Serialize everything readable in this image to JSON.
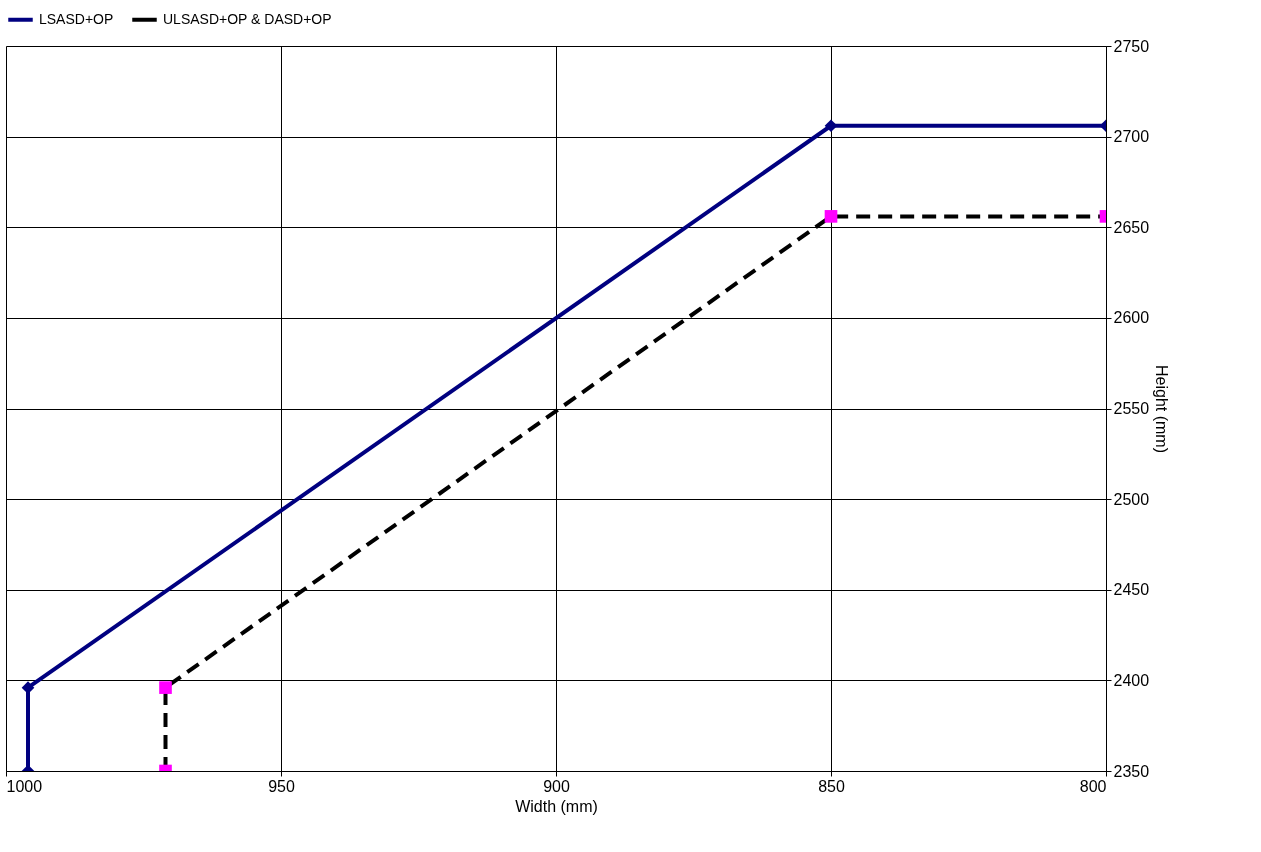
{
  "chart_data": {
    "type": "line",
    "xlabel": "Width (mm)",
    "ylabel": "Height (mm)",
    "xlim": [
      1000,
      800
    ],
    "xticks": [
      1000,
      950,
      900,
      850,
      800
    ],
    "ylim": [
      2350,
      2750
    ],
    "yticks": [
      2350,
      2400,
      2450,
      2500,
      2550,
      2600,
      2650,
      2700,
      2750
    ],
    "grid": true,
    "legend": "top",
    "series": [
      {
        "name": "LSASD+OP",
        "color": "#000080",
        "x": [
          996,
          996,
          850,
          800
        ],
        "values": [
          2350,
          2396,
          2706,
          2706
        ],
        "marker": "diamond",
        "line_style": "solid"
      },
      {
        "name": "ULSASD+OP & DASD+OP",
        "color": "#000000",
        "colors": [
          "#ff00ff",
          "#ff00ff",
          "#ff00ff",
          "#ff00ff"
        ],
        "x": [
          971,
          971,
          850,
          800
        ],
        "values": [
          2350,
          2396,
          2656,
          2656
        ],
        "marker": "square",
        "line_style": "dashed"
      }
    ]
  }
}
